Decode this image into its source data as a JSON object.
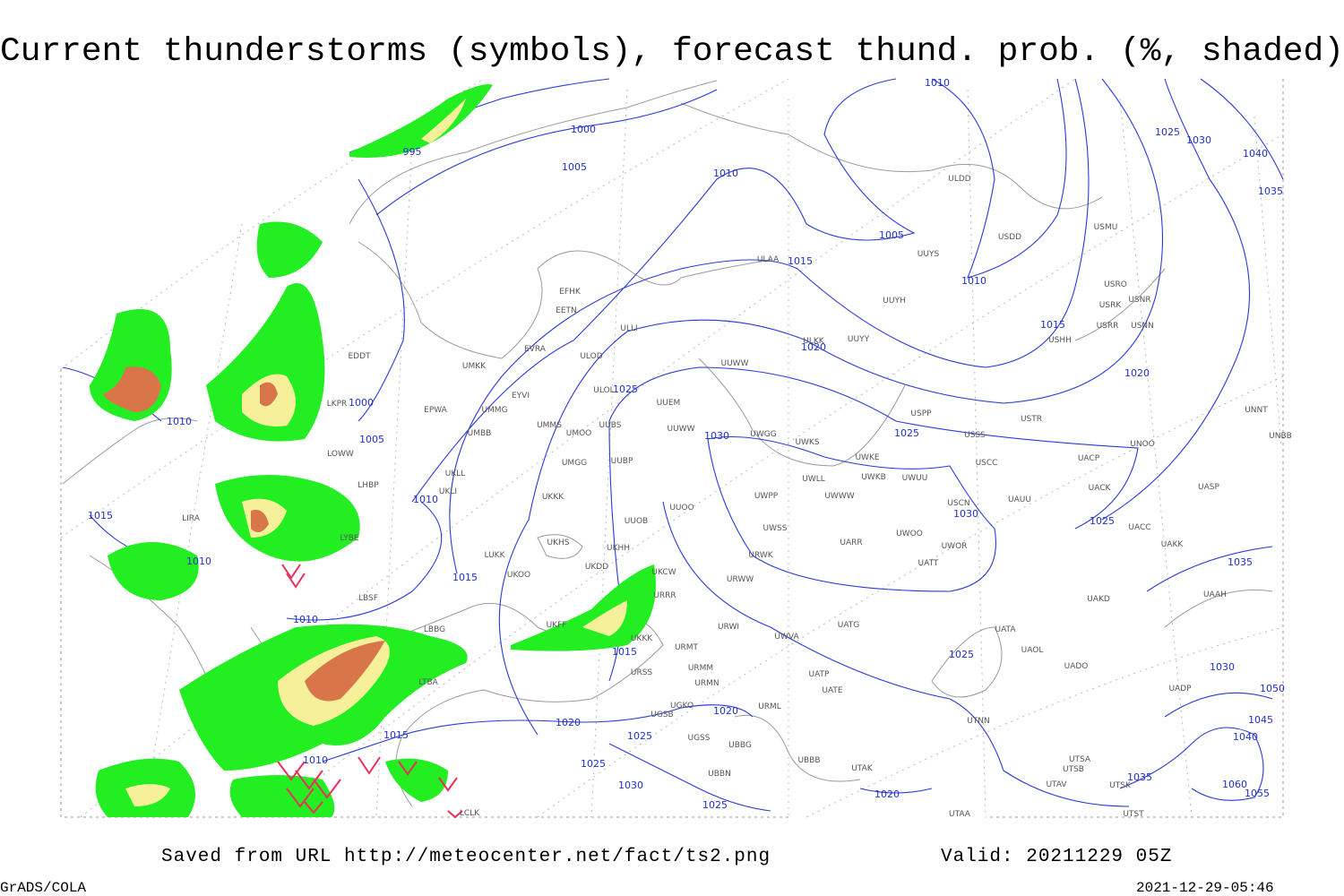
{
  "header": {
    "title": "Current thunderstorms (symbols), forecast thund. prob. (%, shaded)"
  },
  "map": {
    "isobar_labels": [
      "995",
      "1000",
      "1005",
      "1010",
      "1010",
      "1005",
      "1010",
      "1015",
      "1015",
      "1020",
      "1020",
      "1025",
      "1030",
      "1025",
      "1025",
      "1030",
      "1000",
      "1005",
      "1010",
      "1010",
      "1015",
      "1010",
      "1015",
      "1010",
      "1015",
      "1025",
      "1015",
      "1010",
      "1020",
      "1025",
      "1025",
      "1030",
      "1020",
      "1025",
      "1020",
      "1035",
      "1030",
      "1025",
      "1040",
      "1035",
      "1030",
      "1045",
      "1040",
      "1035",
      "1055",
      "1060",
      "1050"
    ],
    "station_labels": [
      "ULDD",
      "USDD",
      "UUYS",
      "ULAA",
      "UUYH",
      "USMU",
      "USRO",
      "USRK",
      "USNR",
      "USRR",
      "USNN",
      "USHH",
      "ULKK",
      "UUYY",
      "EFHK",
      "EETN",
      "ULLI",
      "EVRA",
      "ULOD",
      "UMKK",
      "EDDT",
      "UUWW",
      "ULOL",
      "UUEM",
      "EYVI",
      "EPWA",
      "UMMG",
      "LKPR",
      "USPP",
      "USTR",
      "UNNT",
      "UMMS",
      "UMOO",
      "UUBS",
      "UUWW",
      "UWGG",
      "UWKS",
      "USSS",
      "UNOO",
      "UNBB",
      "UMBB",
      "LOWW",
      "UWKE",
      "UWKB",
      "UWUU",
      "USCC",
      "UACP",
      "UKLL",
      "UMGG",
      "UUBP",
      "UWLL",
      "LHBP",
      "UKLI",
      "UWWW",
      "UWPP",
      "USCN",
      "UAUU",
      "UACK",
      "UASP",
      "UKKK",
      "UUOO",
      "LIRA",
      "UUOB",
      "LYBE",
      "UWSS",
      "UAKK",
      "UACC",
      "UARR",
      "UWOO",
      "UWOR",
      "UKHH",
      "UKHS",
      "UKDD",
      "LUKK",
      "UKOO",
      "UKCW",
      "URRR",
      "UATT",
      "URWW",
      "URWK",
      "UAKD",
      "UAAH",
      "LBSF",
      "UKFF",
      "URWI",
      "UATG",
      "LBBG",
      "UKKK",
      "URMT",
      "UWVA",
      "UATA",
      "UAOL",
      "UADO",
      "URSS",
      "URMM",
      "UATP",
      "UATE",
      "URMN",
      "LTBA",
      "UADP",
      "UGKO",
      "URML",
      "UGSB",
      "UTNN",
      "UGSS",
      "UBBG",
      "UBBB",
      "UBBN",
      "UTSA",
      "UTSB",
      "UTAK",
      "UTAV",
      "UTSK",
      "LCLK",
      "UTAA",
      "UTST"
    ]
  },
  "footer": {
    "source": "Saved from URL http://meteocenter.net/fact/ts2.png",
    "valid": "Valid: 20211229 05Z",
    "software": "GrADS/COLA",
    "timestamp": "2021-12-29-05:46"
  }
}
